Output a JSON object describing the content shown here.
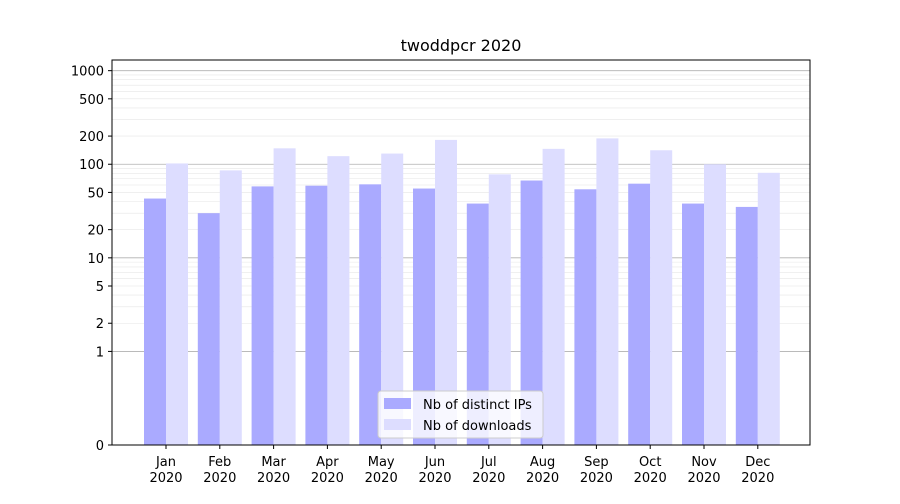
{
  "chart_data": {
    "type": "bar",
    "title": "twoddpcr 2020",
    "xlabel": "",
    "ylabel": "",
    "yscale": "symlog",
    "ylim": [
      0,
      1300
    ],
    "ytick_labels": [
      0,
      1,
      2,
      5,
      10,
      20,
      50,
      100,
      200,
      500,
      1000
    ],
    "grid": "horizontal",
    "legend_position": "bottom-center",
    "categories": [
      [
        "Jan",
        "2020"
      ],
      [
        "Feb",
        "2020"
      ],
      [
        "Mar",
        "2020"
      ],
      [
        "Apr",
        "2020"
      ],
      [
        "May",
        "2020"
      ],
      [
        "Jun",
        "2020"
      ],
      [
        "Jul",
        "2020"
      ],
      [
        "Aug",
        "2020"
      ],
      [
        "Sep",
        "2020"
      ],
      [
        "Oct",
        "2020"
      ],
      [
        "Nov",
        "2020"
      ],
      [
        "Dec",
        "2020"
      ]
    ],
    "series": [
      {
        "name": "Nb of distinct IPs",
        "color": "#aaaaff",
        "values": [
          43,
          30,
          58,
          59,
          61,
          55,
          38,
          67,
          54,
          62,
          38,
          35
        ]
      },
      {
        "name": "Nb of downloads",
        "color": "#ddddff",
        "values": [
          102,
          86,
          148,
          122,
          130,
          182,
          78,
          146,
          189,
          141,
          100,
          81
        ]
      }
    ]
  }
}
